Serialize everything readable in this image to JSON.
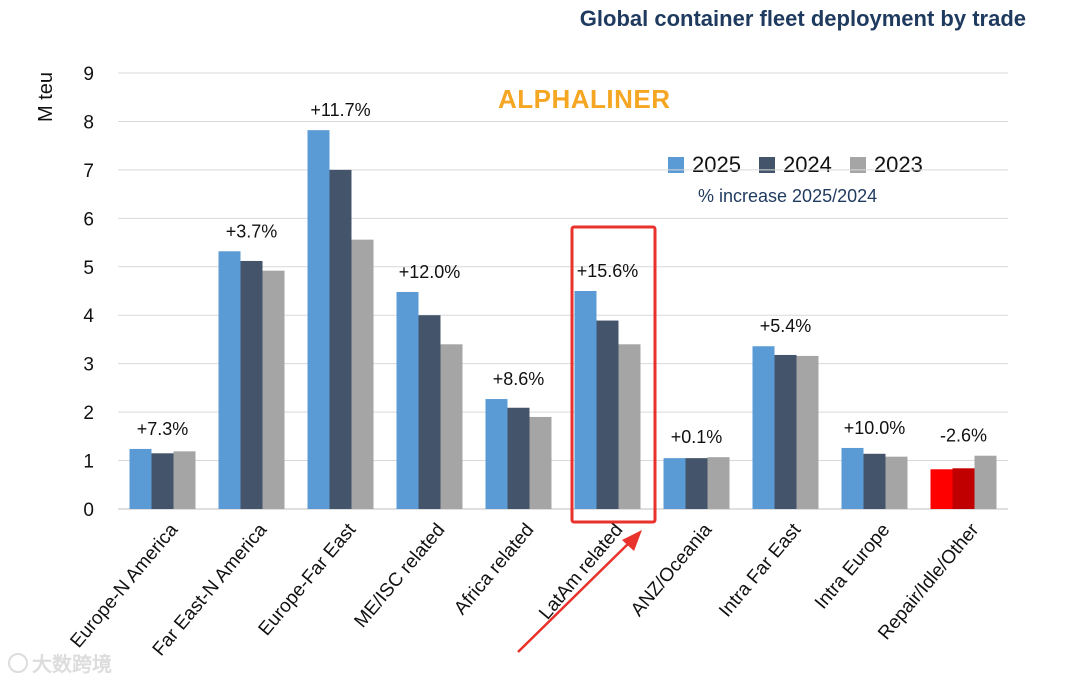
{
  "chart_data": {
    "type": "bar",
    "title": "Global container fleet deployment by trade",
    "ylabel": "M teu",
    "xlabel": "",
    "ylim": [
      0,
      9
    ],
    "yticks": [
      0,
      1,
      2,
      3,
      4,
      5,
      6,
      7,
      8,
      9
    ],
    "grid": true,
    "legend_position": "top-right",
    "categories": [
      "Europe-N America",
      "Far East-N America",
      "Europe-Far East",
      "ME/ISC related",
      "Africa related",
      "LatAm related",
      "ANZ/Oceania",
      "Intra Far East",
      "Intra Europe",
      "Repair/Idle/Other"
    ],
    "series": [
      {
        "name": "2025",
        "color": "#5b9bd5",
        "values": [
          1.24,
          5.32,
          7.82,
          4.48,
          2.27,
          4.5,
          1.05,
          3.36,
          1.26,
          0.82
        ]
      },
      {
        "name": "2024",
        "color": "#44546a",
        "values": [
          1.15,
          5.12,
          7.0,
          4.0,
          2.09,
          3.89,
          1.05,
          3.18,
          1.14,
          0.84
        ]
      },
      {
        "name": "2023",
        "color": "#a5a5a5",
        "values": [
          1.19,
          4.92,
          5.56,
          3.4,
          1.9,
          3.4,
          1.07,
          3.16,
          1.08,
          1.1
        ]
      }
    ],
    "repair_colors": [
      "#ff0000",
      "#c00000",
      "#a5a5a5"
    ],
    "annotations": [
      "+7.3%",
      "+3.7%",
      "+11.7%",
      "+12.0%",
      "+8.6%",
      "+15.6%",
      "+0.1%",
      "+5.4%",
      "+10.0%",
      "-2.6%"
    ],
    "legend_note": "% increase 2025/2024",
    "highlight": {
      "category": "LatAm related",
      "color": "#e8322b"
    }
  },
  "brand": "ALPHALINER",
  "watermark": "大数跨境",
  "colors": {
    "title": "#1f3a5f",
    "brand": "#f5a623"
  }
}
